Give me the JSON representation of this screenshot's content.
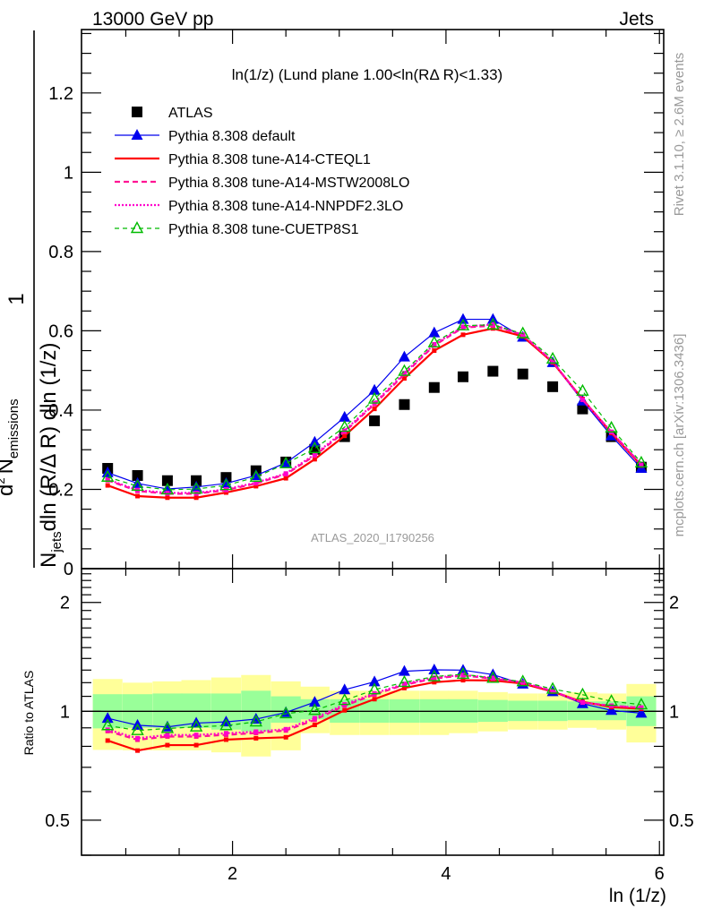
{
  "header": {
    "left": "13000 GeV pp",
    "right": "Jets"
  },
  "side_labels": {
    "rivet": "Rivet 3.1.10, ≥ 2.6M events",
    "mcplots": "mcplots.cern.ch [arXiv:1306.3436]"
  },
  "watermark": "ATLAS_2020_I1790256",
  "chart_data": [
    {
      "type": "line",
      "panel": "main",
      "title": "ln(1/z) (Lund plane 1.00<ln(RΔ R)<1.33)",
      "xlabel": "ln (1/z)",
      "ylabel": "1/N_jets d²N_emissions / dln(R/ΔR) dln(1/z)",
      "ylabel_parts": {
        "frac_num": "1",
        "frac_den_N": "N",
        "frac_den_sub": "jets",
        "d2": "d",
        "sup2": "2",
        "N": "N",
        "sub_emissions": "emissions",
        "denominator_text": "dln (R/Δ R) dln (1/z)"
      },
      "xlim": [
        0.585,
        6.04
      ],
      "ylim": [
        0,
        1.36
      ],
      "yticks": [
        0,
        0.2,
        0.4,
        0.6,
        0.8,
        1,
        1.2
      ],
      "ytick_labels": [
        "0",
        "0.2",
        "0.4",
        "0.6",
        "0.8",
        "1",
        "1.2"
      ],
      "xticks": [
        2,
        4,
        6
      ],
      "grid": false,
      "legend_position": "top-left",
      "x": [
        0.83,
        1.11,
        1.39,
        1.66,
        1.94,
        2.22,
        2.5,
        2.77,
        3.05,
        3.33,
        3.61,
        3.89,
        4.16,
        4.44,
        4.72,
        5.0,
        5.28,
        5.55,
        5.83
      ],
      "series": [
        {
          "name": "ATLAS",
          "color": "#000000",
          "style": "marker-square",
          "values": [
            0.253,
            0.235,
            0.222,
            0.222,
            0.23,
            0.247,
            0.269,
            0.301,
            0.333,
            0.373,
            0.414,
            0.457,
            0.484,
            0.498,
            0.491,
            0.459,
            0.403,
            0.333,
            0.256
          ]
        },
        {
          "name": "Pythia 8.308 default",
          "color": "#0000ee",
          "style": "solid-triangle",
          "values": [
            0.242,
            0.215,
            0.201,
            0.206,
            0.215,
            0.235,
            0.267,
            0.319,
            0.382,
            0.45,
            0.534,
            0.595,
            0.629,
            0.629,
            0.584,
            0.52,
            0.423,
            0.335,
            0.253
          ]
        },
        {
          "name": "Pythia 8.308 tune-A14-CTEQL1",
          "color": "#ff0000",
          "style": "solid-thick",
          "values": [
            0.21,
            0.183,
            0.179,
            0.179,
            0.192,
            0.208,
            0.228,
            0.276,
            0.335,
            0.403,
            0.48,
            0.55,
            0.59,
            0.606,
            0.586,
            0.52,
            0.428,
            0.342,
            0.26
          ]
        },
        {
          "name": "Pythia 8.308 tune-A14-MSTW2008LO",
          "color": "#ff1493",
          "style": "dashed",
          "values": [
            0.223,
            0.196,
            0.189,
            0.189,
            0.198,
            0.215,
            0.238,
            0.285,
            0.345,
            0.415,
            0.49,
            0.563,
            0.608,
            0.613,
            0.59,
            0.522,
            0.426,
            0.345,
            0.262
          ]
        },
        {
          "name": "Pythia 8.308 tune-A14-NNPDF2.3LO",
          "color": "#ff00cc",
          "style": "dotted",
          "values": [
            0.225,
            0.198,
            0.191,
            0.191,
            0.2,
            0.217,
            0.24,
            0.288,
            0.348,
            0.418,
            0.493,
            0.566,
            0.61,
            0.616,
            0.59,
            0.522,
            0.426,
            0.345,
            0.262
          ]
        },
        {
          "name": "Pythia 8.308 tune-CUETP8S1",
          "color": "#00bb00",
          "style": "dashed-open-triangle",
          "values": [
            0.231,
            0.208,
            0.199,
            0.201,
            0.21,
            0.231,
            0.265,
            0.303,
            0.357,
            0.428,
            0.498,
            0.57,
            0.613,
            0.615,
            0.593,
            0.529,
            0.448,
            0.355,
            0.267
          ]
        }
      ]
    },
    {
      "type": "line",
      "panel": "ratio",
      "ylabel": "Ratio to ATLAS",
      "xlabel": "ln (1/z)",
      "yscale": "log",
      "ylim": [
        0.4,
        2.48
      ],
      "yticks": [
        0.5,
        1,
        2
      ],
      "ytick_labels": [
        "0.5",
        "1",
        "2"
      ],
      "xticks": [
        2,
        4,
        6
      ],
      "xtick_labels": [
        "2",
        "4",
        "6"
      ],
      "reference_line": 1,
      "bin_halfwidth": 0.139,
      "band_inner": {
        "color": "#99ff99",
        "up": [
          1.115,
          1.115,
          1.12,
          1.12,
          1.12,
          1.14,
          1.1,
          1.08,
          1.08,
          1.08,
          1.08,
          1.08,
          1.08,
          1.075,
          1.07,
          1.07,
          1.065,
          1.065,
          1.1
        ],
        "down": [
          0.897,
          0.9,
          0.9,
          0.9,
          0.89,
          0.88,
          0.93,
          0.95,
          0.93,
          0.93,
          0.93,
          0.93,
          0.93,
          0.935,
          0.94,
          0.94,
          0.945,
          0.945,
          0.91
        ]
      },
      "band_outer": {
        "color": "#ffff99",
        "up": [
          1.228,
          1.2,
          1.21,
          1.22,
          1.24,
          1.26,
          1.21,
          1.17,
          1.14,
          1.14,
          1.14,
          1.14,
          1.14,
          1.13,
          1.12,
          1.12,
          1.13,
          1.12,
          1.19
        ],
        "down": [
          0.782,
          0.78,
          0.78,
          0.78,
          0.77,
          0.75,
          0.78,
          0.87,
          0.86,
          0.86,
          0.86,
          0.86,
          0.87,
          0.88,
          0.89,
          0.89,
          0.9,
          0.89,
          0.82
        ]
      }
    }
  ]
}
